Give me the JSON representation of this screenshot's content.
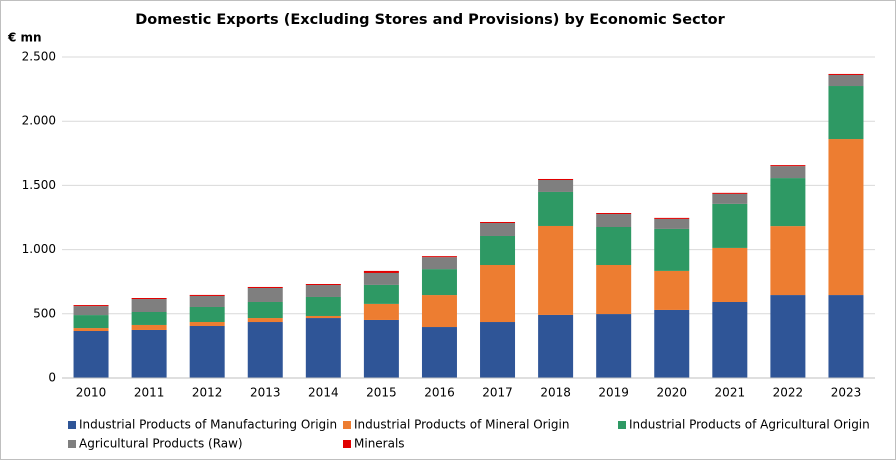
{
  "chart_data": {
    "type": "stacked_bar",
    "title": "Domestic Exports (Excluding  Stores and Provisions) by Economic Sector",
    "y_label": "€ mn",
    "categories": [
      "2010",
      "2011",
      "2012",
      "2013",
      "2014",
      "2015",
      "2016",
      "2017",
      "2018",
      "2019",
      "2020",
      "2021",
      "2022",
      "2023"
    ],
    "series": [
      {
        "name": "Industrial Products of Manufacturing Origin",
        "color": "#2f5597",
        "values": [
          366,
          374,
          405,
          436,
          467,
          452,
          397,
          436,
          491,
          498,
          530,
          592,
          646,
          646
        ]
      },
      {
        "name": "Industrial Products of Mineral Origin",
        "color": "#ed7d31",
        "values": [
          23,
          39,
          31,
          31,
          16,
          125,
          249,
          444,
          693,
          382,
          304,
          421,
          537,
          1215
        ]
      },
      {
        "name": "Industrial Products of Agricultural Origin",
        "color": "#2e9964",
        "values": [
          101,
          101,
          117,
          125,
          148,
          148,
          202,
          226,
          265,
          296,
          327,
          343,
          374,
          413
        ]
      },
      {
        "name": "Agricultural Products (Raw)",
        "color": "#7f7f7f",
        "values": [
          70,
          101,
          86,
          109,
          93,
          93,
          93,
          101,
          93,
          101,
          78,
          78,
          93,
          86
        ]
      },
      {
        "name": "Minerals",
        "color": "#e00000",
        "values": [
          8,
          8,
          8,
          8,
          8,
          16,
          8,
          8,
          8,
          8,
          8,
          8,
          8,
          8
        ]
      }
    ],
    "ylim": [
      0,
      2500
    ],
    "yticks": [
      0,
      500,
      {
        "value": 1000,
        "label": "1.000"
      },
      {
        "value": 1500,
        "label": "1.500"
      },
      {
        "value": 2000,
        "label": "2.000"
      },
      {
        "value": 2500,
        "label": "2.500"
      }
    ],
    "grid": true,
    "legend": "bottom"
  }
}
